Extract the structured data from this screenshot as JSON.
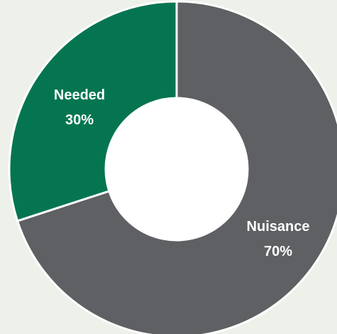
{
  "chart_data": {
    "type": "pie",
    "donut": true,
    "title": "",
    "legend": "none",
    "slices": [
      {
        "label": "Nuisance",
        "value": 70,
        "percent_label": "70%",
        "color": "#5e6063"
      },
      {
        "label": "Needed",
        "value": 30,
        "percent_label": "30%",
        "color": "#057551"
      }
    ],
    "start": "12 o'clock",
    "direction": "clockwise"
  },
  "colors": {
    "background": "#eef0ea",
    "separator": "#ffffff",
    "hole": "#ffffff",
    "label_text": "#ffffff"
  }
}
